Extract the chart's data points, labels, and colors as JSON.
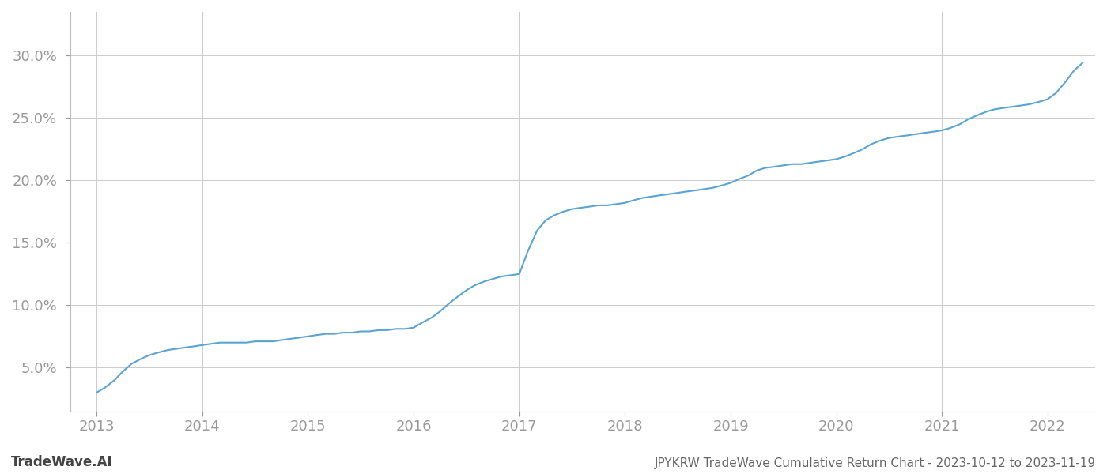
{
  "title_right": "JPYKRW TradeWave Cumulative Return Chart - 2023-10-12 to 2023-11-19",
  "title_left": "TradeWave.AI",
  "line_color": "#5ba3d0",
  "background_color": "#ffffff",
  "grid_color": "#cccccc",
  "x_years": [
    2013,
    2014,
    2015,
    2016,
    2017,
    2018,
    2019,
    2020,
    2021,
    2022
  ],
  "yticks": [
    0.05,
    0.1,
    0.15,
    0.2,
    0.25,
    0.3
  ],
  "ylim": [
    0.015,
    0.335
  ],
  "xlim": [
    2012.75,
    2022.45
  ],
  "data_x": [
    2013.0,
    2013.08,
    2013.17,
    2013.25,
    2013.33,
    2013.42,
    2013.5,
    2013.58,
    2013.67,
    2013.75,
    2013.83,
    2013.92,
    2014.0,
    2014.08,
    2014.17,
    2014.25,
    2014.33,
    2014.42,
    2014.5,
    2014.58,
    2014.67,
    2014.75,
    2014.83,
    2014.92,
    2015.0,
    2015.08,
    2015.17,
    2015.25,
    2015.33,
    2015.42,
    2015.5,
    2015.58,
    2015.67,
    2015.75,
    2015.83,
    2015.92,
    2016.0,
    2016.08,
    2016.17,
    2016.25,
    2016.33,
    2016.42,
    2016.5,
    2016.58,
    2016.67,
    2016.75,
    2016.83,
    2016.92,
    2017.0,
    2017.08,
    2017.17,
    2017.25,
    2017.33,
    2017.42,
    2017.5,
    2017.58,
    2017.67,
    2017.75,
    2017.83,
    2017.92,
    2018.0,
    2018.08,
    2018.17,
    2018.25,
    2018.33,
    2018.42,
    2018.5,
    2018.58,
    2018.67,
    2018.75,
    2018.83,
    2018.92,
    2019.0,
    2019.08,
    2019.17,
    2019.25,
    2019.33,
    2019.42,
    2019.5,
    2019.58,
    2019.67,
    2019.75,
    2019.83,
    2019.92,
    2020.0,
    2020.08,
    2020.17,
    2020.25,
    2020.33,
    2020.42,
    2020.5,
    2020.58,
    2020.67,
    2020.75,
    2020.83,
    2020.92,
    2021.0,
    2021.08,
    2021.17,
    2021.25,
    2021.33,
    2021.42,
    2021.5,
    2021.58,
    2021.67,
    2021.75,
    2021.83,
    2021.92,
    2022.0,
    2022.08,
    2022.17,
    2022.25,
    2022.33
  ],
  "data_y": [
    0.03,
    0.034,
    0.04,
    0.047,
    0.053,
    0.057,
    0.06,
    0.062,
    0.064,
    0.065,
    0.066,
    0.067,
    0.068,
    0.069,
    0.07,
    0.07,
    0.07,
    0.07,
    0.071,
    0.071,
    0.071,
    0.072,
    0.073,
    0.074,
    0.075,
    0.076,
    0.077,
    0.077,
    0.078,
    0.078,
    0.079,
    0.079,
    0.08,
    0.08,
    0.081,
    0.081,
    0.082,
    0.086,
    0.09,
    0.095,
    0.101,
    0.107,
    0.112,
    0.116,
    0.119,
    0.121,
    0.123,
    0.124,
    0.125,
    0.143,
    0.16,
    0.168,
    0.172,
    0.175,
    0.177,
    0.178,
    0.179,
    0.18,
    0.18,
    0.181,
    0.182,
    0.184,
    0.186,
    0.187,
    0.188,
    0.189,
    0.19,
    0.191,
    0.192,
    0.193,
    0.194,
    0.196,
    0.198,
    0.201,
    0.204,
    0.208,
    0.21,
    0.211,
    0.212,
    0.213,
    0.213,
    0.214,
    0.215,
    0.216,
    0.217,
    0.219,
    0.222,
    0.225,
    0.229,
    0.232,
    0.234,
    0.235,
    0.236,
    0.237,
    0.238,
    0.239,
    0.24,
    0.242,
    0.245,
    0.249,
    0.252,
    0.255,
    0.257,
    0.258,
    0.259,
    0.26,
    0.261,
    0.263,
    0.265,
    0.27,
    0.279,
    0.288,
    0.294
  ]
}
